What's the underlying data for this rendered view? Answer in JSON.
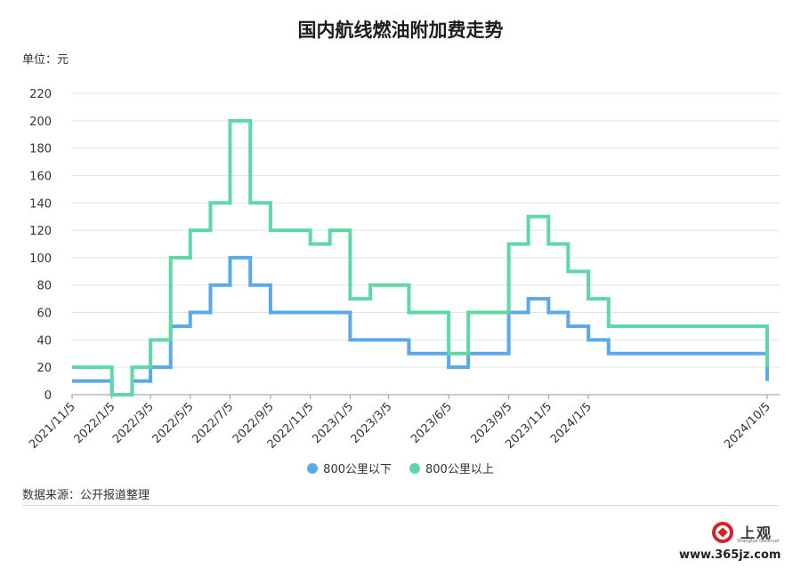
{
  "header": {
    "title": "国内航线燃油附加费走势",
    "unit": "单位：元"
  },
  "footer": {
    "source": "数据来源：公开报道整理"
  },
  "logo": {
    "text": "上观",
    "subtext": "Shanghai Observer",
    "watermark": "www.365jz.com",
    "color": "#d6232a"
  },
  "chart_data": {
    "type": "line",
    "step": "post",
    "title": "国内航线燃油附加费走势",
    "ylabel": "单位：元",
    "ylim": [
      0,
      220
    ],
    "yticks": [
      0,
      20,
      40,
      60,
      80,
      100,
      120,
      140,
      160,
      180,
      200,
      220
    ],
    "grid": true,
    "legend_position": "bottom",
    "x_tick_labels": [
      "2021/11/5",
      "2022/1/5",
      "2022/3/5",
      "2022/5/5",
      "2022/7/5",
      "2022/9/5",
      "2022/11/5",
      "2023/1/5",
      "2023/3/5",
      "2023/6/5",
      "2023/9/5",
      "2023/11/5",
      "2024/1/5",
      "2024/10/5"
    ],
    "x_steps": [
      "2021/11/5",
      "2021/12/5",
      "2022/1/5",
      "2022/2/5",
      "2022/3/5",
      "2022/4/5",
      "2022/5/5",
      "2022/6/5",
      "2022/7/5",
      "2022/8/5",
      "2022/9/5",
      "2022/10/5",
      "2022/11/5",
      "2022/12/5",
      "2023/1/5",
      "2023/2/5",
      "2023/3/5",
      "2023/4/5",
      "2023/6/5",
      "2023/7/5",
      "2023/9/5",
      "2023/10/5",
      "2023/11/5",
      "2023/12/5",
      "2024/1/5",
      "2024/2/5",
      "2024/10/5"
    ],
    "x_final": "2024/10/5",
    "series": [
      {
        "name": "800公里以下",
        "color": "#5aa9ea",
        "values": [
          10,
          10,
          0,
          10,
          20,
          50,
          60,
          80,
          100,
          80,
          60,
          60,
          60,
          60,
          40,
          40,
          40,
          30,
          20,
          30,
          60,
          70,
          60,
          50,
          40,
          30,
          10
        ]
      },
      {
        "name": "800公里以上",
        "color": "#5ed9a5",
        "values": [
          20,
          20,
          0,
          20,
          40,
          100,
          120,
          140,
          200,
          140,
          120,
          120,
          110,
          120,
          70,
          80,
          80,
          60,
          30,
          60,
          110,
          130,
          110,
          90,
          70,
          50,
          20
        ]
      }
    ]
  }
}
